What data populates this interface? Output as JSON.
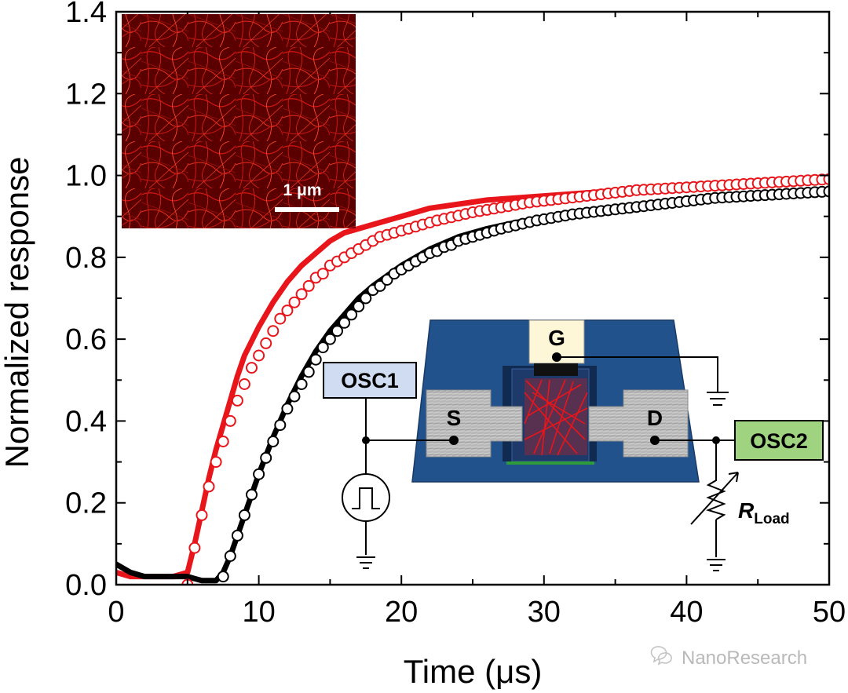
{
  "chart_data": {
    "type": "line",
    "title": "",
    "xlabel": "Time (μs)",
    "ylabel": "Normalized response",
    "xlim": [
      0,
      50
    ],
    "ylim": [
      0.0,
      1.4
    ],
    "xticks": [
      0,
      10,
      20,
      30,
      40,
      50
    ],
    "yticks": [
      0.0,
      0.2,
      0.4,
      0.6,
      0.8,
      1.0,
      1.2,
      1.4
    ],
    "xtick_labels": [
      "0",
      "10",
      "20",
      "30",
      "40",
      "50"
    ],
    "ytick_labels": [
      "0.0",
      "0.2",
      "0.4",
      "0.6",
      "0.8",
      "1.0",
      "1.2",
      "1.4"
    ],
    "series": [
      {
        "name": "measured (red)",
        "color": "#e8151b",
        "style": "line",
        "x": [
          0,
          1,
          2,
          3,
          4,
          5.0,
          5.5,
          6,
          6.5,
          7,
          7.5,
          8,
          8.5,
          9,
          10,
          11,
          12,
          13,
          14,
          15,
          16,
          17,
          18,
          20,
          22,
          24,
          26,
          28,
          30,
          32,
          34,
          36,
          38,
          40,
          42,
          44,
          46,
          48,
          50
        ],
        "y": [
          0.03,
          0.02,
          0.02,
          0.02,
          0.02,
          0.03,
          0.1,
          0.18,
          0.26,
          0.33,
          0.39,
          0.45,
          0.51,
          0.56,
          0.63,
          0.69,
          0.74,
          0.78,
          0.81,
          0.84,
          0.86,
          0.87,
          0.88,
          0.9,
          0.92,
          0.93,
          0.94,
          0.945,
          0.95,
          0.955,
          0.96,
          0.965,
          0.97,
          0.973,
          0.976,
          0.979,
          0.982,
          0.985,
          0.99
        ]
      },
      {
        "name": "fit (red open circles)",
        "color": "#e8151b",
        "style": "open-circles",
        "x": [
          5,
          5.5,
          6,
          6.5,
          7,
          7.5,
          8,
          8.5,
          9,
          9.5,
          10,
          10.5,
          11,
          11.5,
          12,
          12.5,
          13,
          13.5,
          14,
          14.5,
          15,
          15.5,
          16,
          16.5,
          17,
          17.5,
          18,
          18.5,
          19,
          19.5,
          20,
          20.5,
          21,
          21.5,
          22,
          22.5,
          23,
          23.5,
          24,
          24.5,
          25,
          25.5,
          26,
          26.5,
          27,
          27.5,
          28,
          28.5,
          29,
          29.5,
          30,
          30.5,
          31,
          31.5,
          32,
          32.5,
          33,
          33.5,
          34,
          34.5,
          35,
          35.5,
          36,
          36.5,
          37,
          37.5,
          38,
          38.5,
          39,
          39.5,
          40,
          40.5,
          41,
          41.5,
          42,
          42.5,
          43,
          43.5,
          44,
          44.5,
          45,
          45.5,
          46,
          46.5,
          47,
          47.5,
          48,
          48.5,
          49,
          49.5,
          50
        ],
        "y": [
          0.0,
          0.09,
          0.17,
          0.24,
          0.3,
          0.35,
          0.4,
          0.45,
          0.49,
          0.53,
          0.56,
          0.59,
          0.62,
          0.65,
          0.67,
          0.69,
          0.71,
          0.73,
          0.75,
          0.76,
          0.78,
          0.79,
          0.8,
          0.81,
          0.82,
          0.83,
          0.84,
          0.85,
          0.855,
          0.86,
          0.865,
          0.87,
          0.875,
          0.88,
          0.885,
          0.89,
          0.894,
          0.898,
          0.902,
          0.906,
          0.91,
          0.913,
          0.916,
          0.919,
          0.922,
          0.925,
          0.928,
          0.931,
          0.934,
          0.936,
          0.938,
          0.94,
          0.942,
          0.944,
          0.946,
          0.948,
          0.95,
          0.952,
          0.954,
          0.956,
          0.958,
          0.96,
          0.962,
          0.964,
          0.965,
          0.966,
          0.967,
          0.968,
          0.969,
          0.97,
          0.971,
          0.972,
          0.973,
          0.974,
          0.975,
          0.976,
          0.977,
          0.978,
          0.979,
          0.98,
          0.981,
          0.982,
          0.983,
          0.984,
          0.985,
          0.986,
          0.987,
          0.988,
          0.989,
          0.99,
          0.991
        ]
      },
      {
        "name": "measured (black)",
        "color": "#000000",
        "style": "line",
        "x": [
          0,
          1,
          2,
          3,
          4,
          5,
          6,
          7,
          7.5,
          8,
          8.5,
          9,
          9.5,
          10,
          11,
          12,
          13,
          14,
          15,
          16,
          17,
          18,
          20,
          22,
          24,
          26,
          28,
          30,
          32,
          34,
          36,
          38,
          40,
          42,
          44,
          46,
          48,
          50
        ],
        "y": [
          0.05,
          0.03,
          0.02,
          0.02,
          0.02,
          0.02,
          0.01,
          0.01,
          0.03,
          0.07,
          0.12,
          0.17,
          0.22,
          0.27,
          0.36,
          0.44,
          0.51,
          0.57,
          0.62,
          0.66,
          0.7,
          0.73,
          0.78,
          0.82,
          0.85,
          0.87,
          0.885,
          0.895,
          0.905,
          0.915,
          0.922,
          0.928,
          0.934,
          0.94,
          0.945,
          0.95,
          0.955,
          0.96
        ]
      },
      {
        "name": "fit (black open circles)",
        "color": "#000000",
        "style": "open-circles",
        "x": [
          7.5,
          8,
          8.5,
          9,
          9.5,
          10,
          10.5,
          11,
          11.5,
          12,
          12.5,
          13,
          13.5,
          14,
          14.5,
          15,
          15.5,
          16,
          16.5,
          17,
          17.5,
          18,
          18.5,
          19,
          19.5,
          20,
          20.5,
          21,
          21.5,
          22,
          22.5,
          23,
          23.5,
          24,
          24.5,
          25,
          25.5,
          26,
          26.5,
          27,
          27.5,
          28,
          28.5,
          29,
          29.5,
          30,
          30.5,
          31,
          31.5,
          32,
          32.5,
          33,
          33.5,
          34,
          34.5,
          35,
          35.5,
          36,
          36.5,
          37,
          37.5,
          38,
          38.5,
          39,
          39.5,
          40,
          40.5,
          41,
          41.5,
          42,
          42.5,
          43,
          43.5,
          44,
          44.5,
          45,
          45.5,
          46,
          46.5,
          47,
          47.5,
          48,
          48.5,
          49,
          49.5,
          50
        ],
        "y": [
          0.02,
          0.07,
          0.12,
          0.17,
          0.22,
          0.27,
          0.31,
          0.35,
          0.39,
          0.43,
          0.46,
          0.49,
          0.52,
          0.55,
          0.58,
          0.6,
          0.62,
          0.64,
          0.66,
          0.68,
          0.7,
          0.72,
          0.73,
          0.745,
          0.76,
          0.77,
          0.78,
          0.79,
          0.8,
          0.81,
          0.815,
          0.825,
          0.83,
          0.84,
          0.845,
          0.85,
          0.855,
          0.86,
          0.865,
          0.87,
          0.874,
          0.878,
          0.882,
          0.886,
          0.89,
          0.893,
          0.896,
          0.899,
          0.902,
          0.905,
          0.907,
          0.909,
          0.911,
          0.913,
          0.915,
          0.917,
          0.919,
          0.921,
          0.923,
          0.925,
          0.927,
          0.929,
          0.931,
          0.933,
          0.935,
          0.937,
          0.939,
          0.941,
          0.943,
          0.945,
          0.946,
          0.947,
          0.948,
          0.949,
          0.95,
          0.951,
          0.952,
          0.953,
          0.954,
          0.955,
          0.956,
          0.957,
          0.958,
          0.959,
          0.96,
          0.961
        ]
      }
    ],
    "inset_afm": {
      "scale_bar": "1 μm"
    },
    "inset_device": {
      "electrodes": [
        "S",
        "G",
        "D"
      ],
      "instruments": [
        "OSC1",
        "OSC2"
      ],
      "load_label": "R",
      "load_subscript": "Load"
    }
  },
  "watermark": "NanoResearch",
  "colors": {
    "red": "#e8151b",
    "black": "#000000",
    "substrate": "#21508a",
    "osc1": "#cfdcf1",
    "osc2": "#9fd37f",
    "gate": "#fdf7d7"
  }
}
